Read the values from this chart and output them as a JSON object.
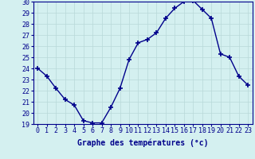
{
  "x": [
    0,
    1,
    2,
    3,
    4,
    5,
    6,
    7,
    8,
    9,
    10,
    11,
    12,
    13,
    14,
    15,
    16,
    17,
    18,
    19,
    20,
    21,
    22,
    23
  ],
  "y": [
    24.0,
    23.3,
    22.2,
    21.2,
    20.7,
    19.3,
    19.1,
    19.1,
    20.5,
    22.2,
    24.8,
    26.3,
    26.6,
    27.2,
    28.5,
    29.4,
    30.0,
    30.1,
    29.3,
    28.5,
    25.3,
    25.0,
    23.3,
    22.5
  ],
  "line_color": "#00008B",
  "marker": "+",
  "marker_size": 5,
  "bg_color": "#d4f0f0",
  "grid_color": "#b8d8d8",
  "axis_color": "#00008B",
  "xlabel": "Graphe des températures (°c)",
  "xlim": [
    -0.5,
    23.5
  ],
  "ylim": [
    19,
    30
  ],
  "yticks": [
    19,
    20,
    21,
    22,
    23,
    24,
    25,
    26,
    27,
    28,
    29,
    30
  ],
  "xticks": [
    0,
    1,
    2,
    3,
    4,
    5,
    6,
    7,
    8,
    9,
    10,
    11,
    12,
    13,
    14,
    15,
    16,
    17,
    18,
    19,
    20,
    21,
    22,
    23
  ],
  "xlabel_fontsize": 7,
  "tick_fontsize": 6,
  "linewidth": 1.0
}
